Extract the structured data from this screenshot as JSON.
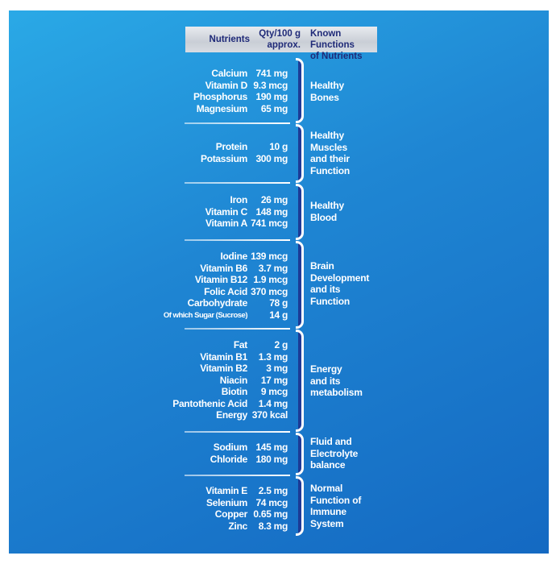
{
  "header": {
    "nutrients": "Nutrients",
    "qty_line1": "Qty/100 g",
    "qty_line2": "approx.",
    "functions_line1": "Known Functions",
    "functions_line2": "of Nutrients"
  },
  "groups": [
    {
      "function_lines": [
        "Healthy",
        "Bones"
      ],
      "rows": [
        {
          "nutrient": "Calcium",
          "qty": "741 mg"
        },
        {
          "nutrient": "Vitamin D",
          "qty": "9.3 mcg"
        },
        {
          "nutrient": "Phosphorus",
          "qty": "190 mg"
        },
        {
          "nutrient": "Magnesium",
          "qty": "65 mg"
        }
      ]
    },
    {
      "function_lines": [
        "Healthy",
        "Muscles",
        "and their",
        "Function"
      ],
      "rows": [
        {
          "nutrient": "Protein",
          "qty": "10 g"
        },
        {
          "nutrient": "Potassium",
          "qty": "300 mg"
        }
      ]
    },
    {
      "function_lines": [
        "Healthy",
        "Blood"
      ],
      "rows": [
        {
          "nutrient": "Iron",
          "qty": "26 mg"
        },
        {
          "nutrient": "Vitamin C",
          "qty": "148 mg"
        },
        {
          "nutrient": "Vitamin A",
          "qty": "741 mcg"
        }
      ]
    },
    {
      "function_lines": [
        "Brain",
        "Development",
        "and its",
        "Function"
      ],
      "rows": [
        {
          "nutrient": "Iodine",
          "qty": "139 mcg"
        },
        {
          "nutrient": "Vitamin B6",
          "qty": "3.7 mg"
        },
        {
          "nutrient": "Vitamin B12",
          "qty": "1.9 mcg"
        },
        {
          "nutrient": "Folic Acid",
          "qty": "370 mcg"
        },
        {
          "nutrient": "Carbohydrate",
          "qty": "78 g"
        },
        {
          "nutrient": "Of which Sugar (Sucrose)",
          "qty": "14 g",
          "small": true
        }
      ]
    },
    {
      "function_lines": [
        "Energy",
        "and its",
        "metabolism"
      ],
      "rows": [
        {
          "nutrient": "Fat",
          "qty": "2 g"
        },
        {
          "nutrient": "Vitamin B1",
          "qty": "1.3 mg"
        },
        {
          "nutrient": "Vitamin B2",
          "qty": "3 mg"
        },
        {
          "nutrient": "Niacin",
          "qty": "17 mg"
        },
        {
          "nutrient": "Biotin",
          "qty": "9 mcg"
        },
        {
          "nutrient": "Pantothenic Acid",
          "qty": "1.4 mg"
        },
        {
          "nutrient": "Energy",
          "qty": "370 kcal"
        }
      ]
    },
    {
      "function_lines": [
        "Fluid and",
        "Electrolyte",
        "balance"
      ],
      "rows": [
        {
          "nutrient": "Sodium",
          "qty": "145 mg"
        },
        {
          "nutrient": "Chloride",
          "qty": "180 mg"
        }
      ]
    },
    {
      "function_lines": [
        "Normal",
        "Function of",
        "Immune",
        "System"
      ],
      "rows": [
        {
          "nutrient": "Vitamin E",
          "qty": "2.5 mg"
        },
        {
          "nutrient": "Selenium",
          "qty": "74 mcg"
        },
        {
          "nutrient": "Copper",
          "qty": "0.65 mg"
        },
        {
          "nutrient": "Zinc",
          "qty": "8.3 mg"
        }
      ]
    }
  ]
}
